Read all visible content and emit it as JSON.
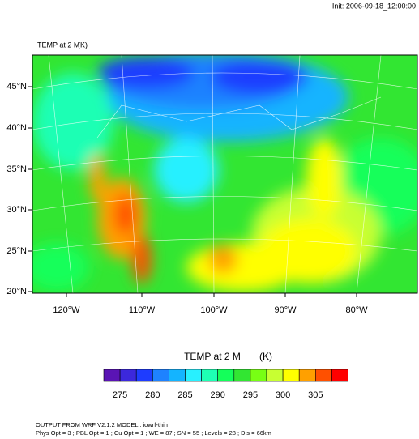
{
  "header": {
    "init": "Init: 2006-09-18_12:00:00"
  },
  "map": {
    "title": "TEMP at 2 M",
    "units": "(K)",
    "lat_ticks": [
      "45°N",
      "40°N",
      "35°N",
      "30°N",
      "25°N",
      "20°N"
    ],
    "lon_ticks": [
      "120°W",
      "110°W",
      "100°W",
      "90°W",
      "80°W"
    ]
  },
  "colorbar": {
    "title": "TEMP at 2 M",
    "units": "(K)",
    "labels": [
      275,
      280,
      285,
      290,
      295,
      300,
      305
    ],
    "colors": [
      "#5a14b4",
      "#3c28dc",
      "#1e3cff",
      "#1e82ff",
      "#14b4ff",
      "#28f0ff",
      "#1effb4",
      "#14ff5a",
      "#32e632",
      "#78ff14",
      "#c8ff32",
      "#ffff00",
      "#ffa000",
      "#ff5000",
      "#ff0000"
    ]
  },
  "footer": {
    "line1": "OUTPUT FROM WRF V2.1.2 MODEL : iowrf-thin",
    "line2": "Phys Opt = 3 ; PBL Opt = 1 ; Cu Opt = 1 ; WE = 87 ; SN = 55 ; Levels = 28 ; Dis = 66km"
  }
}
